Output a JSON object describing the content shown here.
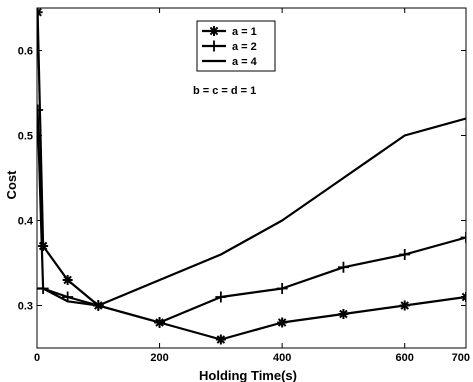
{
  "chart_data": {
    "type": "line",
    "xlabel": "Holding Time(s)",
    "ylabel": "Cost",
    "xlim": [
      0,
      700
    ],
    "ylim": [
      0.25,
      0.65
    ],
    "xticks": [
      "0",
      "200",
      "400",
      "600",
      "700"
    ],
    "xtick_values": [
      0,
      200,
      400,
      600,
      700
    ],
    "yticks": [
      "0.3",
      "0.4",
      "0.5",
      "0.6"
    ],
    "ytick_values": [
      0.3,
      0.4,
      0.5,
      0.6
    ],
    "legend_placement": "top-center",
    "annotation": "b = c = d = 1",
    "x": [
      1,
      10,
      50,
      100,
      200,
      300,
      400,
      500,
      600,
      700
    ],
    "series": [
      {
        "name": "a = 1",
        "marker": "asterisk",
        "values": [
          0.645,
          0.37,
          0.33,
          0.3,
          0.28,
          0.26,
          0.28,
          0.29,
          0.3,
          0.31
        ]
      },
      {
        "name": "a = 2",
        "marker": "plus",
        "values": [
          0.53,
          0.32,
          0.31,
          0.3,
          0.28,
          0.31,
          0.32,
          0.345,
          0.36,
          0.38
        ]
      },
      {
        "name": "a = 4",
        "marker": "none",
        "values": [
          0.32,
          0.32,
          0.305,
          0.3,
          0.33,
          0.36,
          0.4,
          0.45,
          0.5,
          0.52
        ]
      }
    ]
  }
}
